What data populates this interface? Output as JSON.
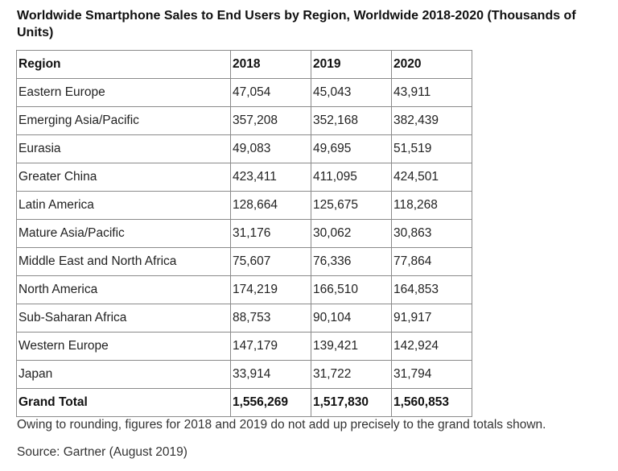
{
  "chart_data": {
    "type": "table",
    "title": "Worldwide Smartphone Sales to End Users by Region, Worldwide 2018-2020 (Thousands of Units)",
    "columns": [
      "Region",
      "2018",
      "2019",
      "2020"
    ],
    "rows": [
      [
        "Eastern Europe",
        "47,054",
        "45,043",
        "43,911"
      ],
      [
        "Emerging Asia/Pacific",
        "357,208",
        "352,168",
        "382,439"
      ],
      [
        "Eurasia",
        "49,083",
        "49,695",
        "51,519"
      ],
      [
        "Greater China",
        "423,411",
        "411,095",
        "424,501"
      ],
      [
        "Latin America",
        "128,664",
        "125,675",
        "118,268"
      ],
      [
        "Mature Asia/Pacific",
        "31,176",
        "30,062",
        "30,863"
      ],
      [
        "Middle East and North Africa",
        "75,607",
        "76,336",
        "77,864"
      ],
      [
        "North America",
        "174,219",
        "166,510",
        "164,853"
      ],
      [
        "Sub-Saharan Africa",
        "88,753",
        "90,104",
        "91,917"
      ],
      [
        "Western Europe",
        "147,179",
        "139,421",
        "142,924"
      ],
      [
        "Japan",
        "33,914",
        "31,722",
        "31,794"
      ]
    ],
    "total": [
      "Grand Total",
      "1,556,269",
      "1,517,830",
      "1,560,853"
    ],
    "note": "Owing to rounding, figures for 2018 and 2019 do not add up precisely to the grand totals shown.",
    "source": "Source: Gartner (August 2019)"
  }
}
